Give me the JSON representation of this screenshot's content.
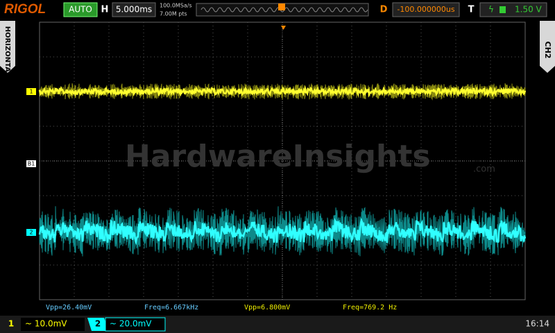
{
  "header": {
    "brand": "RIGOL",
    "mode": "AUTO",
    "h_label": "H",
    "timebase": "5.000ms",
    "sample_rate": "100.0MSa/s",
    "memory_depth": "7.00M pts",
    "delay_label": "D",
    "delay": "-100.000000us",
    "trigger_label": "T",
    "trigger_level": "1.50 V"
  },
  "side": {
    "left": "HORIZONTAL",
    "right": "CH2"
  },
  "markers": {
    "ch1": "1",
    "ref": "B1",
    "ch2": "2"
  },
  "watermark": {
    "text": "HardwareInsights",
    "suffix": ".com"
  },
  "measurements": [
    "Vpp=26.40mV",
    "Freq=6.667kHz",
    "Vpp=6.800mV",
    "Freq=769.2 Hz"
  ],
  "footer": {
    "ch1_num": "1",
    "ch1_scale": "~ 10.0mV",
    "ch2_num": "2",
    "ch2_scale": "~ 20.0mV",
    "clock": "16:14"
  }
}
